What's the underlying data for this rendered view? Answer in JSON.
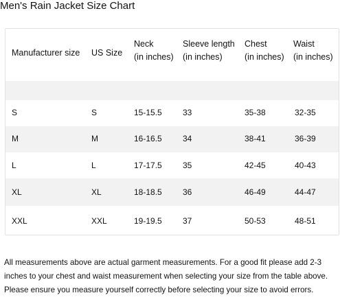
{
  "title": "Men's Rain Jacket Size Chart",
  "headers": [
    {
      "line1": "Manufacturer size",
      "line2": ""
    },
    {
      "line1": "US Size",
      "line2": ""
    },
    {
      "line1": "Neck",
      "line2": "(in inches)"
    },
    {
      "line1": "Sleeve length",
      "line2": "(in inches)"
    },
    {
      "line1": "Chest",
      "line2": "(in inches)"
    },
    {
      "line1": "Waist",
      "line2": "(in inches)"
    }
  ],
  "rows": [
    [
      "S",
      "S",
      "15-15.5",
      "33",
      "35-38",
      "32-35"
    ],
    [
      "M",
      "M",
      "16-16.5",
      "34",
      "38-41",
      "36-39"
    ],
    [
      "L",
      "L",
      "17-17.5",
      "35",
      "42-45",
      "40-43"
    ],
    [
      "XL",
      "XL",
      "18-18.5",
      "36",
      "46-49",
      "44-47"
    ],
    [
      "XXL",
      "XXL",
      "19-19.5",
      "37",
      "50-53",
      "48-51"
    ]
  ],
  "note": "All measurements above are actual garment measurements. For a good fit please add 2-3 inches to your chest and waist measurement when selecting your size from the table above. Please ensure you measure yourself correctly before selecting your size to avoid errors."
}
